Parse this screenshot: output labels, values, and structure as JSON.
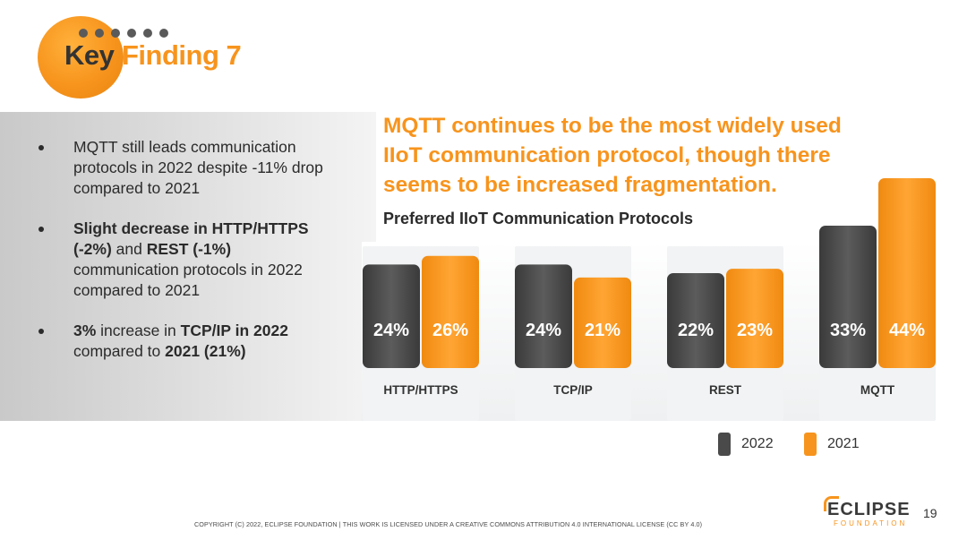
{
  "header": {
    "title_key": "Key",
    "title_finding": "Finding 7"
  },
  "bullets": {
    "b1": "MQTT still leads communication protocols in 2022 despite  -11% drop compared to 2021",
    "b2_bold1": "Slight decrease in HTTP/HTTPS (-2%)",
    "b2_and": " and ",
    "b2_bold2": "REST (-1%)",
    "b2_rest": " communication protocols in 2022 compared to 2021",
    "b3_bold1": "3%",
    "b3_mid": " increase in ",
    "b3_bold2": "TCP/IP in 2022",
    "b3_mid2": " compared to ",
    "b3_bold3": "2021 (21%)"
  },
  "headline": "MQTT continues to be the most widely used IIoT communication protocol, though there seems to be increased fragmentation.",
  "chart_data": {
    "type": "bar",
    "title": "Preferred IIoT Communication Protocols",
    "categories": [
      "HTTP/HTTPS",
      "TCP/IP",
      "REST",
      "MQTT"
    ],
    "series": [
      {
        "name": "2022",
        "values": [
          24,
          24,
          22,
          33
        ],
        "labels": [
          "24%",
          "24%",
          "22%",
          "33%"
        ],
        "color": "#4a4a4a"
      },
      {
        "name": "2021",
        "values": [
          26,
          21,
          23,
          44
        ],
        "labels": [
          "26%",
          "21%",
          "23%",
          "44%"
        ],
        "color": "#f7941d"
      }
    ],
    "ylim": [
      0,
      44
    ]
  },
  "legend": {
    "s2022": "2022",
    "s2021": "2021"
  },
  "colors": {
    "accent": "#f7941d",
    "dark": "#4a4a4a"
  },
  "footer": {
    "copyright": "COPYRIGHT (C) 2022, ECLIPSE FOUNDATION | THIS WORK IS LICENSED UNDER A CREATIVE COMMONS ATTRIBUTION 4.0 INTERNATIONAL LICENSE (CC BY 4.0)",
    "logo": "ECLIPSE",
    "logo_sub": "FOUNDATION",
    "page": "19"
  }
}
